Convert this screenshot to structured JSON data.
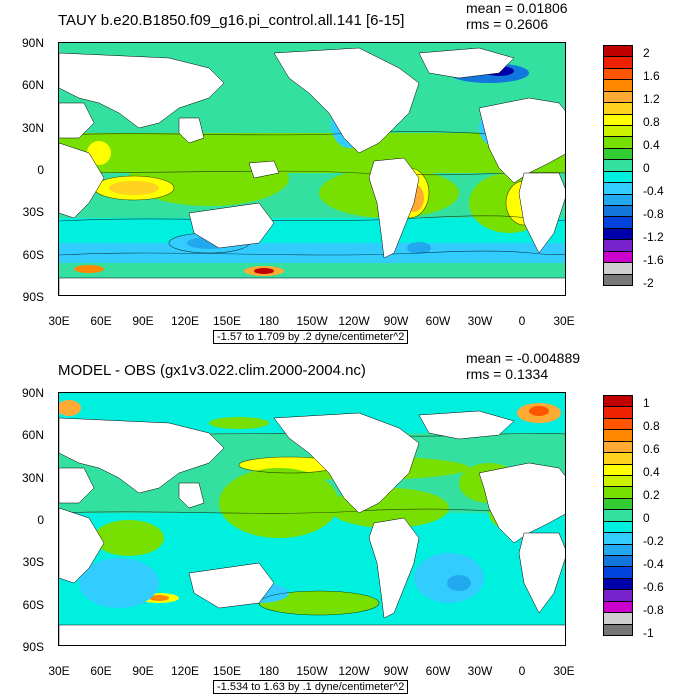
{
  "panels": [
    {
      "title": "TAUY b.e20.B1850.f09_g16.pi_control.all.141 [6-15]",
      "mean": "mean = 0.01806",
      "rms": "rms = 0.2606",
      "range_label": "-1.57 to 1.709 by .2 dyne/centimeter^2",
      "colorbar": {
        "labels": [
          "2",
          "1.6",
          "1.2",
          "0.8",
          "0.4",
          "0",
          "-0.4",
          "-0.8",
          "-1.2",
          "-1.6",
          "-2"
        ],
        "colors": [
          "#c00000",
          "#ee2200",
          "#ff5500",
          "#ff8800",
          "#ffaa33",
          "#ffd21f",
          "#ffff00",
          "#ccf200",
          "#77e000",
          "#33cc33",
          "#33e0a0",
          "#00f0e0",
          "#33ccff",
          "#22a8ee",
          "#1177dd",
          "#0044dd",
          "#0000aa",
          "#7722cc",
          "#cc00cc",
          "#cfcfcf",
          "#777777"
        ]
      }
    },
    {
      "title": "MODEL - OBS (gx1v3.022.clim.2000-2004.nc)",
      "mean": "mean = -0.004889",
      "rms": "rms = 0.1334",
      "range_label": "-1.534 to 1.63 by .1 dyne/centimeter^2",
      "colorbar": {
        "labels": [
          "1",
          "0.8",
          "0.6",
          "0.4",
          "0.2",
          "0",
          "-0.2",
          "-0.4",
          "-0.6",
          "-0.8",
          "-1"
        ],
        "colors": [
          "#c00000",
          "#ee2200",
          "#ff5500",
          "#ff8800",
          "#ffaa33",
          "#ffd21f",
          "#ffff00",
          "#ccf200",
          "#77e000",
          "#33cc33",
          "#33e0a0",
          "#00f0e0",
          "#33ccff",
          "#22a8ee",
          "#1177dd",
          "#0044dd",
          "#0000aa",
          "#7722cc",
          "#cc00cc",
          "#cfcfcf",
          "#777777"
        ]
      }
    }
  ],
  "axes": {
    "lat_labels": [
      "90N",
      "60N",
      "30N",
      "0",
      "30S",
      "60S",
      "90S"
    ],
    "lon_labels": [
      "30E",
      "60E",
      "90E",
      "120E",
      "150E",
      "180",
      "150W",
      "120W",
      "90W",
      "60W",
      "30W",
      "0",
      "30E"
    ]
  },
  "colors": {
    "land": "#ffffff",
    "ocean_base": "#33e0a0"
  }
}
